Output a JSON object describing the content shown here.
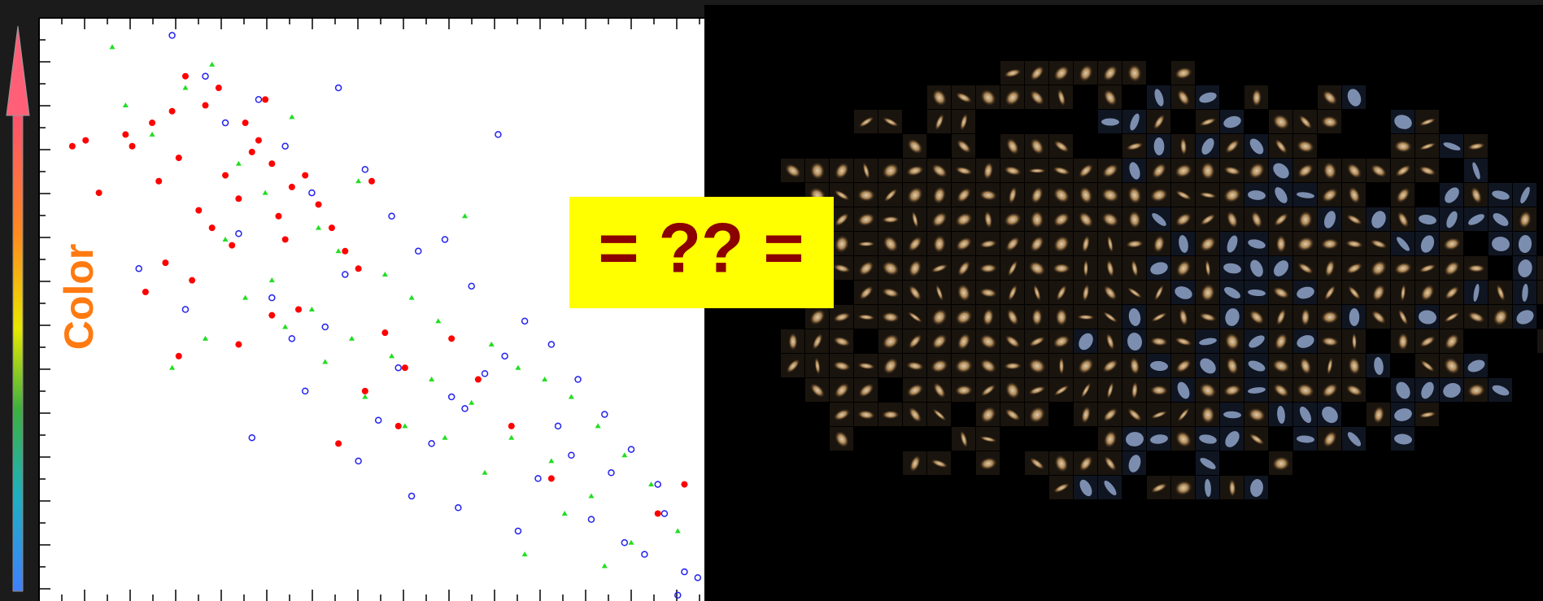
{
  "chart_data": {
    "type": "scatter",
    "ylabel": "Color",
    "annotation": "= ?? =",
    "xlim": [
      0,
      100
    ],
    "ylim": [
      0,
      100
    ],
    "series": [
      {
        "color": "#ff0000",
        "marker": "filled-circle",
        "x": [
          5,
          7,
          9,
          14,
          13,
          17,
          20,
          21,
          22,
          18,
          25,
          27,
          28,
          30,
          31,
          33,
          35,
          36,
          38,
          40,
          24,
          26,
          29,
          32,
          34,
          19,
          23,
          37,
          42,
          44,
          46,
          48,
          50,
          52,
          55,
          62,
          66,
          49,
          16,
          21,
          30,
          35,
          45,
          54,
          39,
          71,
          97,
          93,
          77
        ],
        "values": [
          78,
          79,
          70,
          78,
          80,
          82,
          84,
          76,
          90,
          72,
          85,
          88,
          73,
          69,
          82,
          79,
          75,
          66,
          71,
          73,
          67,
          64,
          61,
          77,
          86,
          58,
          55,
          62,
          68,
          64,
          60,
          57,
          72,
          46,
          40,
          45,
          38,
          36,
          53,
          42,
          44,
          49,
          27,
          30,
          50,
          30,
          20,
          15,
          21
        ]
      },
      {
        "color": "#22dd22",
        "marker": "triangle",
        "x": [
          11,
          13,
          17,
          22,
          26,
          30,
          34,
          38,
          42,
          45,
          48,
          52,
          56,
          60,
          64,
          68,
          72,
          76,
          80,
          84,
          88,
          92,
          96,
          28,
          35,
          41,
          47,
          53,
          59,
          65,
          71,
          77,
          83,
          89,
          20,
          25,
          31,
          37,
          43,
          49,
          55,
          61,
          67,
          73,
          79,
          85
        ],
        "values": [
          95,
          85,
          80,
          88,
          92,
          75,
          70,
          83,
          64,
          60,
          72,
          56,
          52,
          48,
          66,
          44,
          40,
          38,
          35,
          30,
          25,
          20,
          12,
          62,
          55,
          50,
          45,
          42,
          38,
          34,
          28,
          24,
          18,
          10,
          40,
          45,
          52,
          47,
          41,
          35,
          30,
          28,
          22,
          8,
          15,
          6
        ]
      },
      {
        "color": "#2222ee",
        "marker": "open-circle",
        "x": [
          20,
          25,
          28,
          33,
          37,
          41,
          45,
          49,
          53,
          57,
          61,
          65,
          69,
          73,
          77,
          81,
          85,
          89,
          93,
          97,
          15,
          22,
          30,
          38,
          46,
          54,
          62,
          70,
          78,
          86,
          94,
          32,
          40,
          48,
          56,
          64,
          72,
          80,
          88,
          96,
          35,
          43,
          51,
          59,
          67,
          75,
          83,
          91,
          99,
          63
        ],
        "values": [
          97,
          90,
          82,
          86,
          78,
          70,
          88,
          74,
          66,
          60,
          62,
          54,
          80,
          48,
          44,
          38,
          32,
          26,
          20,
          5,
          57,
          50,
          63,
          45,
          56,
          40,
          35,
          42,
          30,
          22,
          15,
          28,
          36,
          24,
          18,
          33,
          12,
          25,
          10,
          1,
          52,
          47,
          31,
          27,
          39,
          21,
          14,
          8,
          4,
          16
        ]
      }
    ]
  }
}
